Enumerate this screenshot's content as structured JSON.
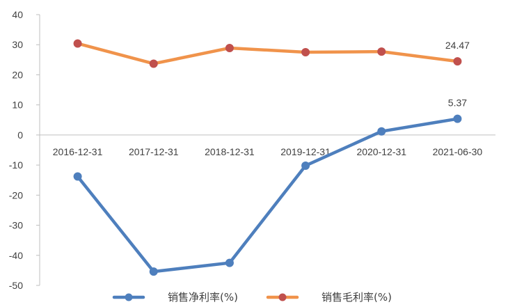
{
  "chart_data": {
    "type": "line",
    "title": "",
    "xlabel": "",
    "ylabel": "",
    "categories": [
      "2016-12-31",
      "2017-12-31",
      "2018-12-31",
      "2019-12-31",
      "2020-12-31",
      "2021-06-30"
    ],
    "ylim": [
      -50,
      40
    ],
    "yticks": [
      40,
      30,
      20,
      10,
      0,
      -10,
      -20,
      -30,
      -40,
      -50
    ],
    "grid": false,
    "legend_position": "bottom",
    "series": [
      {
        "name": "销售净利率(%)",
        "color": "#4e7fbd",
        "values": [
          -13.8,
          -45.4,
          -42.5,
          -10.2,
          1.2,
          5.37
        ],
        "last_label": "5.37"
      },
      {
        "name": "销售毛利率(%)",
        "color": "#f0934b",
        "marker_color": "#c0504d",
        "values": [
          30.4,
          23.7,
          28.9,
          27.5,
          27.7,
          24.47
        ],
        "last_label": "24.47"
      }
    ]
  }
}
